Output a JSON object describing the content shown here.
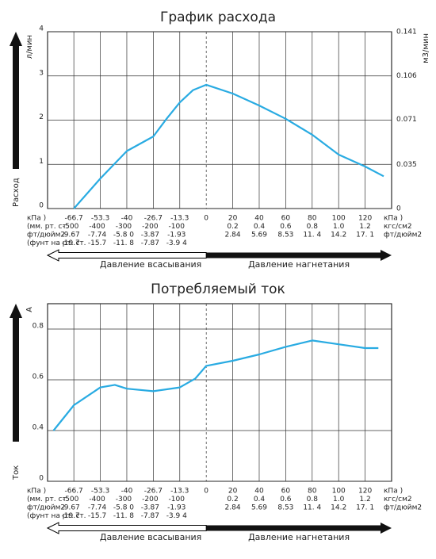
{
  "chart_data": [
    {
      "type": "line",
      "title": "График расхода",
      "ylabel_top": "л/мин",
      "ylabel_bottom": "Расход",
      "y2label": "м3/мин",
      "ylim": [
        0,
        4
      ],
      "yticks": [
        0,
        1,
        2,
        3,
        4
      ],
      "y2lim": [
        0,
        0.141
      ],
      "y2ticks": [
        0,
        0.035,
        0.071,
        0.106,
        0.141
      ],
      "xlim": [
        -80,
        140
      ],
      "xticks": [
        -66.7,
        -53.3,
        -40,
        -26.7,
        -13.3,
        0,
        20,
        40,
        60,
        80,
        100,
        120
      ],
      "x_unit_left": "кПа )",
      "x_unit_right": "кПа )",
      "suction_rows": [
        {
          "label": "(мм. рт. ст.",
          "values": [
            "-500",
            "-400",
            "-300",
            "-200",
            "-100"
          ]
        },
        {
          "label": "фт/дюйм2",
          "values": [
            "-9.67",
            "-7.74",
            "-5.8 0",
            "-3.87",
            "-1.93"
          ]
        },
        {
          "label": "(фунт на рт. ст.",
          "values": [
            "-19.7",
            "-15.7",
            "-11. 8",
            "-7.87",
            "-3.9 4"
          ]
        }
      ],
      "discharge_rows": [
        {
          "label": "кгс/см2",
          "values": [
            "0.2",
            "0.4",
            "0.6",
            "0.8",
            "1.0",
            "1.2"
          ]
        },
        {
          "label": "фт/дюйм2",
          "values": [
            "2.84",
            "5.69",
            "8.53",
            "11. 4",
            "14.2",
            "17. 1"
          ]
        }
      ],
      "suction_label": "Давление всасывания",
      "discharge_label": "Давление нагнетания",
      "grid": true,
      "series": [
        {
          "color": "#29abe2",
          "x": [
            -66.7,
            -53.3,
            -40,
            -26.7,
            -20,
            -13.3,
            -6.6,
            0,
            20,
            40,
            60,
            80,
            100,
            120,
            134
          ],
          "values": [
            0,
            0.68,
            1.3,
            1.63,
            2.03,
            2.4,
            2.68,
            2.8,
            2.6,
            2.33,
            2.03,
            1.67,
            1.22,
            0.95,
            0.73
          ]
        }
      ]
    },
    {
      "type": "line",
      "title": "Потребляемый ток",
      "ylabel_top": "A",
      "ylabel_bottom": "Ток",
      "ylim": [
        0,
        0.9
      ],
      "yticks": [
        0,
        0.4,
        0.6,
        0.8
      ],
      "xlim": [
        -80,
        140
      ],
      "xticks": [
        -66.7,
        -53.3,
        -40,
        -26.7,
        -13.3,
        0,
        20,
        40,
        60,
        80,
        100,
        120
      ],
      "x_unit_left": "кПа )",
      "x_unit_right": "кПа )",
      "suction_rows": [
        {
          "label": "(мм. рт. ст.",
          "values": [
            "-500",
            "-400",
            "-300",
            "-200",
            "-100"
          ]
        },
        {
          "label": "фт/дюйм2",
          "values": [
            "-9.67",
            "-7.74",
            "-5.8 0",
            "-3.87",
            "-1.93"
          ]
        },
        {
          "label": "(фунт на рт. ст.",
          "values": [
            "-19.7",
            "-15.7",
            "-11. 8",
            "-7.87",
            "-3.9 4"
          ]
        }
      ],
      "discharge_rows": [
        {
          "label": "кгс/см2",
          "values": [
            "0.2",
            "0.4",
            "0.6",
            "0.8",
            "1.0",
            "1.2"
          ]
        },
        {
          "label": "фт/дюйм2",
          "values": [
            "2.84",
            "5.69",
            "8.53",
            "11. 4",
            "14.2",
            "17. 1"
          ]
        }
      ],
      "suction_label": "Давление всасывания",
      "discharge_label": "Давление нагнетания",
      "grid": true,
      "series": [
        {
          "color": "#29abe2",
          "x": [
            -77,
            -66.7,
            -53.3,
            -46,
            -40,
            -26.7,
            -13.3,
            -5.5,
            0,
            20,
            40,
            60,
            80,
            100,
            120,
            130
          ],
          "values": [
            0.4,
            0.5,
            0.57,
            0.58,
            0.565,
            0.555,
            0.57,
            0.605,
            0.655,
            0.675,
            0.7,
            0.73,
            0.755,
            0.74,
            0.725,
            0.725
          ]
        }
      ]
    }
  ]
}
